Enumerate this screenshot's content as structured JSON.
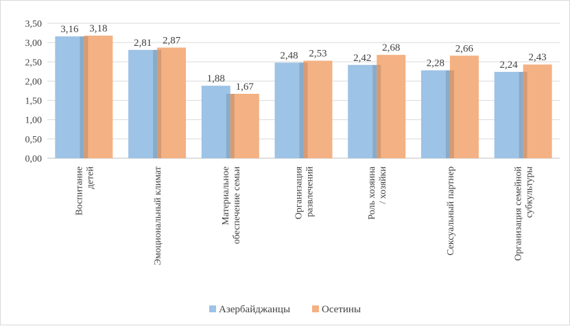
{
  "chart_data": {
    "type": "bar",
    "categories": [
      [
        "Воспитание",
        "детей"
      ],
      [
        "Эмоциональный климат"
      ],
      [
        "Материальное",
        "обеспечение семьи"
      ],
      [
        "Организация",
        "развлечений"
      ],
      [
        "Роль хозяина",
        "/ хозяйки"
      ],
      [
        "Сексуальный партнер"
      ],
      [
        "Организация семейной",
        "субкультуры"
      ]
    ],
    "series": [
      {
        "name": "Азербайджанцы",
        "color": "#9dc3e6",
        "values": [
          3.16,
          2.81,
          1.88,
          2.48,
          2.42,
          2.28,
          2.24
        ],
        "labels": [
          "3,16",
          "2,81",
          "1,88",
          "2,48",
          "2,42",
          "2,28",
          "2,24"
        ]
      },
      {
        "name": "Осетины",
        "color": "#f4b183",
        "values": [
          3.18,
          2.87,
          1.67,
          2.53,
          2.68,
          2.66,
          2.43
        ],
        "labels": [
          "3,18",
          "2,87",
          "1,67",
          "2,53",
          "2,68",
          "2,66",
          "2,43"
        ]
      }
    ],
    "ylim": [
      0,
      3.5
    ],
    "yticks": [
      0,
      0.5,
      1,
      1.5,
      2,
      2.5,
      3,
      3.5
    ],
    "ytick_labels": [
      "0,00",
      "0,50",
      "1,00",
      "1,50",
      "2,00",
      "2,50",
      "3,00",
      "3,50"
    ],
    "grid": true,
    "legend": "bottom"
  }
}
